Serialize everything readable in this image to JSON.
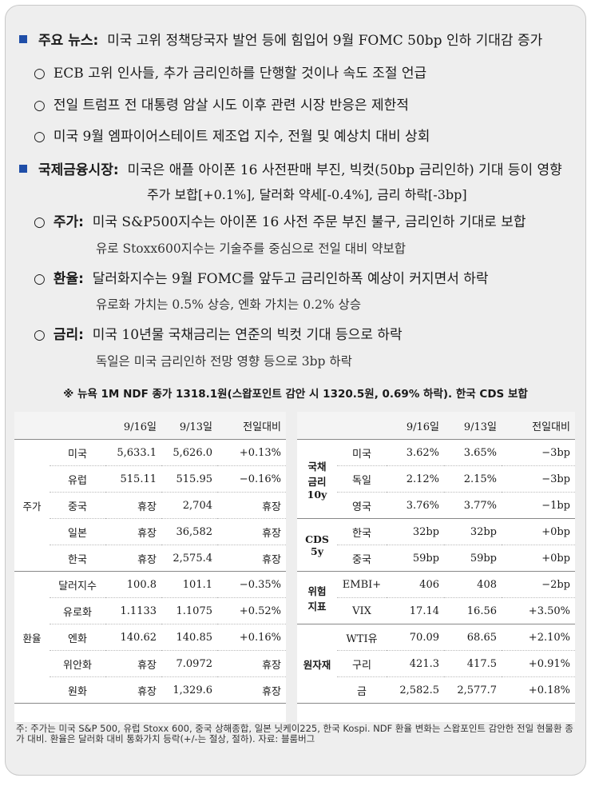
{
  "headlines": {
    "main_label": "주요 뉴스:",
    "main_text": "미국 고위 정책당국자 발언 등에 힘입어 9월 FOMC 50bp 인하 기대감 증가",
    "items": [
      "ECB 고위 인사들, 추가 금리인하를 단행할 것이나 속도 조절 언급",
      "전일 트럼프 전 대통령 암살 시도 이후 관련 시장 반응은 제한적",
      "미국 9월 엠파이어스테이트 제조업 지수, 전월 및 예상치 대비 상회"
    ]
  },
  "intl": {
    "label": "국제금융시장:",
    "text": "미국은 애플 아이폰 16 사전판매 부진, 빅컷(50bp 금리인하) 기대 등이 영향",
    "summary": "주가 보합[+0.1%], 달러화 약세[-0.4%], 금리 하락[-3bp]",
    "sections": [
      {
        "label": "주가:",
        "text": "미국 S&P500지수는 아이폰 16 사전 주문 부진 불구, 금리인하 기대로 보합",
        "sub": "유로 Stoxx600지수는 기술주를 중심으로 전일 대비 약보합"
      },
      {
        "label": "환율:",
        "text": "달러화지수는 9월 FOMC를 앞두고 금리인하폭 예상이 커지면서 하락",
        "sub": "유로화 가치는 0.5% 상승, 엔화 가치는 0.2% 상승"
      },
      {
        "label": "금리:",
        "text": "미국 10년물 국채금리는 연준의 빅컷 기대 등으로 하락",
        "sub": "독일은 미국 금리인하 전망 영향 등으로 3bp 하락"
      }
    ],
    "ndf_note": "※ 뉴욕 1M NDF 종가 1318.1원(스왑포인트 감안 시 1320.5원, 0.69% 하락). 한국 CDS 보합"
  },
  "left_table": {
    "headers": [
      "",
      "",
      "9/16일",
      "9/13일",
      "전일대비"
    ],
    "groups": [
      {
        "name": "주가",
        "rows": [
          [
            "미국",
            "5,633.1",
            "5,626.0",
            "+0.13%"
          ],
          [
            "유럽",
            "515.11",
            "515.95",
            "−0.16%"
          ],
          [
            "중국",
            "휴장",
            "2,704",
            "휴장"
          ],
          [
            "일본",
            "휴장",
            "36,582",
            "휴장"
          ],
          [
            "한국",
            "휴장",
            "2,575.4",
            "휴장"
          ]
        ]
      },
      {
        "name": "환율",
        "rows": [
          [
            "달러지수",
            "100.8",
            "101.1",
            "−0.35%"
          ],
          [
            "유로화",
            "1.1133",
            "1.1075",
            "+0.52%"
          ],
          [
            "엔화",
            "140.62",
            "140.85",
            "+0.16%"
          ],
          [
            "위안화",
            "휴장",
            "7.0972",
            "휴장"
          ],
          [
            "원화",
            "휴장",
            "1,329.6",
            "휴장"
          ]
        ]
      }
    ]
  },
  "right_table": {
    "headers": [
      "",
      "",
      "9/16일",
      "9/13일",
      "전일대비"
    ],
    "groups": [
      {
        "name": "국채\n금리\n10y",
        "rows": [
          [
            "미국",
            "3.62%",
            "3.65%",
            "−3bp"
          ],
          [
            "독일",
            "2.12%",
            "2.15%",
            "−3bp"
          ],
          [
            "영국",
            "3.76%",
            "3.77%",
            "−1bp"
          ]
        ]
      },
      {
        "name": "CDS\n5y",
        "rows": [
          [
            "한국",
            "32bp",
            "32bp",
            "+0bp"
          ],
          [
            "중국",
            "59bp",
            "59bp",
            "+0bp"
          ]
        ]
      },
      {
        "name": "위험\n지표",
        "rows": [
          [
            "EMBI+",
            "406",
            "408",
            "−2bp"
          ],
          [
            "VIX",
            "17.14",
            "16.56",
            "+3.50%"
          ]
        ]
      },
      {
        "name": "원자재",
        "rows": [
          [
            "WTI유",
            "70.09",
            "68.65",
            "+2.10%"
          ],
          [
            "구리",
            "421.3",
            "417.5",
            "+0.91%"
          ],
          [
            "금",
            "2,582.5",
            "2,577.7",
            "+0.18%"
          ]
        ]
      }
    ]
  },
  "footnote": "주: 주가는 미국 S&P 500, 유럽 Stoxx 600, 중국 상해종합, 일본 닛케이225, 한국 Kospi. NDF 환율 변화는 스왑포인트 감안한 전일 현물환 종가 대비. 환율은 달러화 대비 통화가치 등락(+/-는 절상, 절하). 자료: 블룸버그"
}
